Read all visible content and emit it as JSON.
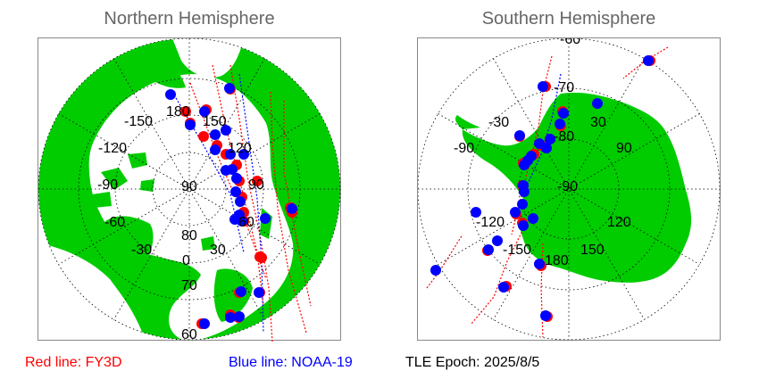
{
  "north": {
    "title": "Northern Hemisphere",
    "lon_labels": [
      "180",
      "-150",
      "150",
      "-120",
      "120",
      "-90",
      "90",
      "-60",
      "60",
      "-30",
      "30",
      "0"
    ],
    "lat_labels": [
      "90",
      "80",
      "70",
      "60"
    ]
  },
  "south": {
    "title": "Southern Hemisphere",
    "lon_labels": [
      "-60",
      "-30",
      "30",
      "-90",
      "90",
      "-120",
      "120",
      "-150",
      "150",
      "180"
    ],
    "lat_labels": [
      "-70",
      "-80",
      "-90"
    ]
  },
  "legend": {
    "red": "Red line: FY3D",
    "blue": "Blue line: NOAA-19",
    "epoch": "TLE Epoch: 2025/8/5"
  },
  "colors": {
    "land": "#00cc00",
    "ocean": "#ffffff",
    "fy3d": "#ff0000",
    "noaa19": "#0000ff",
    "title": "#666666"
  }
}
